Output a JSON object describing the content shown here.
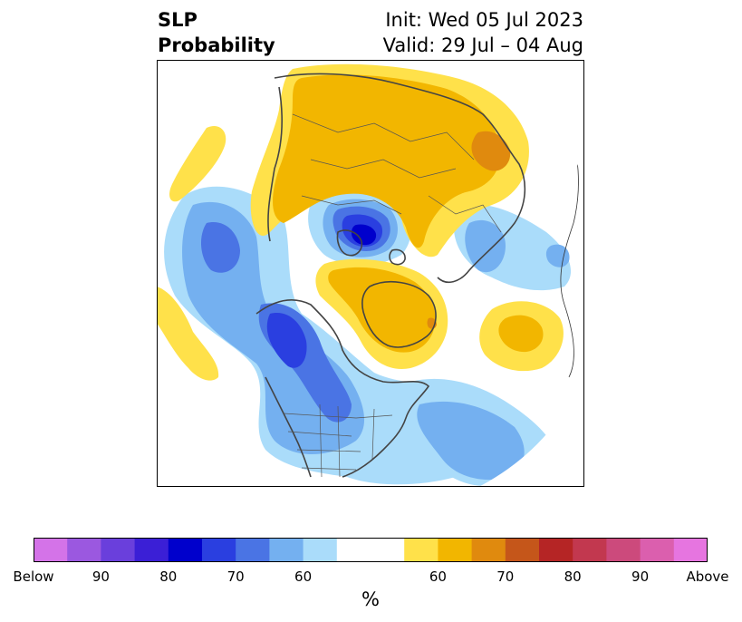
{
  "title": {
    "left_line1": "SLP",
    "left_line2": "Probability",
    "right_line1": "Init: Wed 05 Jul 2023",
    "right_line2": "Valid: 29 Jul – 04 Aug"
  },
  "map": {
    "projection": "north-polar-stereographic",
    "fill_colors": {
      "below_60": "#aadcfa",
      "below_70": "#74b0f0",
      "below_80": "#4a74e4",
      "below_85": "#2a3fe0",
      "below_90": "#0000cc",
      "above_60": "#ffe14a",
      "above_70": "#f2b600",
      "above_80": "#e08a0e"
    }
  },
  "colorbar": {
    "colors": [
      "#d473e8",
      "#9b58e0",
      "#6a3fdc",
      "#3b1fd6",
      "#0000cc",
      "#2a3fe0",
      "#4a74e4",
      "#74b0f0",
      "#aadcfa",
      "#ffffff",
      "#ffffff",
      "#ffe14a",
      "#f2b600",
      "#e08a0e",
      "#c5561a",
      "#b52525",
      "#c2384f",
      "#cc4a7c",
      "#db5fae",
      "#e675e0"
    ],
    "tick_labels": [
      "Below",
      "90",
      "80",
      "70",
      "60",
      "60",
      "70",
      "80",
      "90",
      "Above"
    ],
    "unit": "%"
  }
}
